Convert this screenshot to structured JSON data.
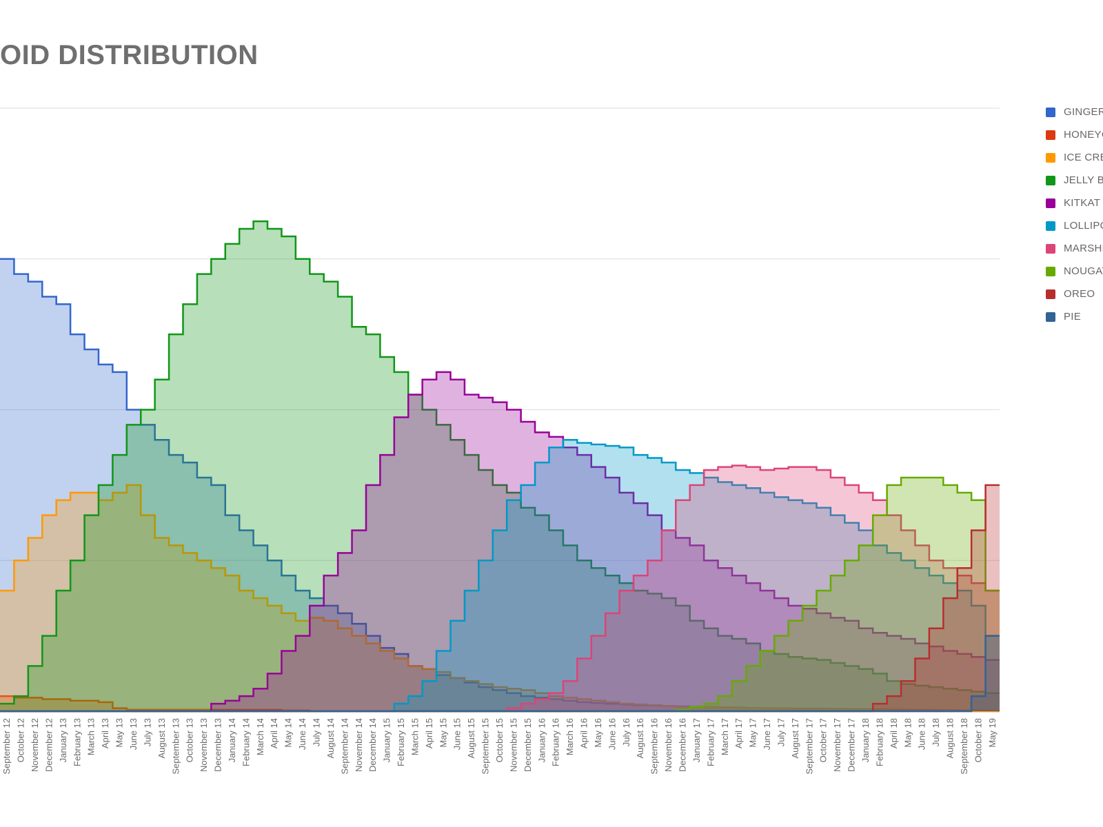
{
  "title": "OID DISTRIBUTION",
  "chart_data": {
    "type": "area",
    "x_labels": [
      "September 12",
      "October 12",
      "November 12",
      "December 12",
      "January 13",
      "February 13",
      "March 13",
      "April 13",
      "May 13",
      "June 13",
      "July 13",
      "August 13",
      "September 13",
      "October 13",
      "November 13",
      "December 13",
      "January 14",
      "February 14",
      "March 14",
      "April 14",
      "May 14",
      "June 14",
      "July 14",
      "August 14",
      "September 14",
      "November 14",
      "December 14",
      "January 15",
      "February 15",
      "March 15",
      "April 15",
      "May 15",
      "June 15",
      "August 15",
      "September 15",
      "October 15",
      "November 15",
      "December 15",
      "January 16",
      "February 16",
      "March 16",
      "April 16",
      "May 16",
      "June 16",
      "July 16",
      "August 16",
      "September 16",
      "November 16",
      "December 16",
      "January 17",
      "February 17",
      "March 17",
      "April 17",
      "May 17",
      "June 17",
      "July 17",
      "August 17",
      "September 17",
      "October 17",
      "November 17",
      "December 17",
      "January 18",
      "February 18",
      "April 18",
      "May 18",
      "June 18",
      "July 18",
      "August 18",
      "September 18",
      "October 18",
      "May 19"
    ],
    "y_gridlines": 4,
    "ylim": [
      0,
      4
    ],
    "series": [
      {
        "name": "GINGERBREAD",
        "color": "#3366cc",
        "values": [
          3.0,
          2.9,
          2.85,
          2.75,
          2.7,
          2.5,
          2.4,
          2.3,
          2.25,
          2.0,
          1.9,
          1.8,
          1.7,
          1.65,
          1.55,
          1.5,
          1.3,
          1.2,
          1.1,
          1.0,
          0.9,
          0.8,
          0.75,
          0.7,
          0.65,
          0.58,
          0.5,
          0.42,
          0.38,
          0.3,
          0.28,
          0.24,
          0.22,
          0.19,
          0.16,
          0.14,
          0.12,
          0.1,
          0.09,
          0.08,
          0.07,
          0.06,
          0.055,
          0.05,
          0.045,
          0.04,
          0.038,
          0.035,
          0.032,
          0.03,
          0.028,
          0.026,
          0.024,
          0.022,
          0.02,
          0.019,
          0.018,
          0.017,
          0.016,
          0.015,
          0.014,
          0.013,
          0.012,
          0.011,
          0.01,
          0.009,
          0.008,
          0.007,
          0.006,
          0.005,
          0.004
        ]
      },
      {
        "name": "HONEYCOMB",
        "color": "#dc3912",
        "values": [
          0.1,
          0.09,
          0.09,
          0.08,
          0.08,
          0.07,
          0.07,
          0.06,
          0.02,
          0.01,
          0.01,
          0.01,
          0.01,
          0.01,
          0.01,
          0.01,
          0.01,
          0.01,
          0.01,
          0.01,
          0.005,
          0.005,
          0,
          0,
          0,
          0,
          0,
          0,
          0,
          0,
          0,
          0,
          0,
          0,
          0,
          0,
          0,
          0,
          0,
          0,
          0,
          0,
          0,
          0,
          0,
          0,
          0,
          0,
          0,
          0,
          0,
          0,
          0,
          0,
          0,
          0,
          0,
          0,
          0,
          0,
          0,
          0,
          0,
          0,
          0,
          0,
          0,
          0,
          0,
          0,
          0
        ]
      },
      {
        "name": "ICE CREAM SANDWICH",
        "color": "#ff9900",
        "values": [
          0.8,
          1.0,
          1.15,
          1.3,
          1.4,
          1.45,
          1.45,
          1.4,
          1.45,
          1.5,
          1.3,
          1.15,
          1.1,
          1.05,
          1.0,
          0.95,
          0.9,
          0.8,
          0.75,
          0.7,
          0.65,
          0.6,
          0.62,
          0.6,
          0.55,
          0.5,
          0.45,
          0.4,
          0.35,
          0.3,
          0.28,
          0.26,
          0.22,
          0.2,
          0.18,
          0.16,
          0.15,
          0.14,
          0.12,
          0.1,
          0.09,
          0.08,
          0.07,
          0.06,
          0.05,
          0.045,
          0.04,
          0.035,
          0.03,
          0.028,
          0.026,
          0.024,
          0.022,
          0.02,
          0.018,
          0.016,
          0.015,
          0.014,
          0.012,
          0.011,
          0.01,
          0.009,
          0.008,
          0.007,
          0.006,
          0.005,
          0.004,
          0.003,
          0.002,
          0.001,
          0.001
        ]
      },
      {
        "name": "JELLY BEAN",
        "color": "#109618",
        "values": [
          0.05,
          0.1,
          0.3,
          0.5,
          0.8,
          1.0,
          1.3,
          1.5,
          1.7,
          1.9,
          2.0,
          2.2,
          2.5,
          2.7,
          2.9,
          3.0,
          3.1,
          3.2,
          3.25,
          3.2,
          3.15,
          3.0,
          2.9,
          2.85,
          2.75,
          2.55,
          2.5,
          2.35,
          2.25,
          2.1,
          2.0,
          1.9,
          1.8,
          1.7,
          1.6,
          1.5,
          1.45,
          1.35,
          1.3,
          1.2,
          1.1,
          1.0,
          0.95,
          0.9,
          0.85,
          0.8,
          0.78,
          0.75,
          0.7,
          0.6,
          0.55,
          0.5,
          0.48,
          0.45,
          0.4,
          0.38,
          0.36,
          0.35,
          0.34,
          0.32,
          0.3,
          0.28,
          0.25,
          0.2,
          0.18,
          0.17,
          0.16,
          0.15,
          0.14,
          0.13,
          0.12
        ]
      },
      {
        "name": "KITKAT",
        "color": "#990099",
        "values": [
          0,
          0,
          0,
          0,
          0,
          0,
          0,
          0,
          0,
          0,
          0,
          0,
          0,
          0,
          0,
          0.05,
          0.07,
          0.1,
          0.15,
          0.25,
          0.4,
          0.5,
          0.7,
          0.9,
          1.05,
          1.2,
          1.5,
          1.7,
          1.95,
          2.1,
          2.2,
          2.25,
          2.2,
          2.1,
          2.08,
          2.05,
          2.0,
          1.92,
          1.85,
          1.82,
          1.75,
          1.7,
          1.62,
          1.55,
          1.45,
          1.38,
          1.3,
          1.2,
          1.15,
          1.1,
          1.0,
          0.95,
          0.9,
          0.85,
          0.8,
          0.75,
          0.7,
          0.68,
          0.65,
          0.62,
          0.6,
          0.55,
          0.52,
          0.5,
          0.48,
          0.45,
          0.43,
          0.4,
          0.38,
          0.36,
          0.34
        ]
      },
      {
        "name": "LOLLIPOP",
        "color": "#0099c6",
        "values": [
          0,
          0,
          0,
          0,
          0,
          0,
          0,
          0,
          0,
          0,
          0,
          0,
          0,
          0,
          0,
          0,
          0,
          0,
          0,
          0,
          0,
          0,
          0,
          0,
          0,
          0,
          0,
          0,
          0.05,
          0.1,
          0.2,
          0.4,
          0.6,
          0.8,
          1.0,
          1.2,
          1.4,
          1.5,
          1.65,
          1.75,
          1.8,
          1.78,
          1.77,
          1.76,
          1.75,
          1.7,
          1.68,
          1.65,
          1.6,
          1.58,
          1.55,
          1.52,
          1.5,
          1.48,
          1.45,
          1.42,
          1.4,
          1.38,
          1.35,
          1.3,
          1.25,
          1.2,
          1.1,
          1.05,
          1.0,
          0.95,
          0.9,
          0.85,
          0.8,
          0.7,
          0.5
        ]
      },
      {
        "name": "MARSHMALLOW",
        "color": "#dd4477",
        "values": [
          0,
          0,
          0,
          0,
          0,
          0,
          0,
          0,
          0,
          0,
          0,
          0,
          0,
          0,
          0,
          0,
          0,
          0,
          0,
          0,
          0,
          0,
          0,
          0,
          0,
          0,
          0,
          0,
          0,
          0,
          0,
          0,
          0,
          0,
          0,
          0,
          0.02,
          0.05,
          0.08,
          0.12,
          0.2,
          0.35,
          0.5,
          0.65,
          0.8,
          0.9,
          1.0,
          1.2,
          1.4,
          1.5,
          1.6,
          1.62,
          1.63,
          1.62,
          1.6,
          1.61,
          1.62,
          1.62,
          1.6,
          1.55,
          1.5,
          1.45,
          1.4,
          1.3,
          1.2,
          1.1,
          1.0,
          0.95,
          0.9,
          0.85,
          0.8
        ]
      },
      {
        "name": "NOUGAT",
        "color": "#66aa00",
        "values": [
          0,
          0,
          0,
          0,
          0,
          0,
          0,
          0,
          0,
          0,
          0,
          0,
          0,
          0,
          0,
          0,
          0,
          0,
          0,
          0,
          0,
          0,
          0,
          0,
          0,
          0,
          0,
          0,
          0,
          0,
          0,
          0,
          0,
          0,
          0,
          0,
          0,
          0,
          0,
          0,
          0,
          0,
          0,
          0,
          0,
          0,
          0,
          0,
          0.01,
          0.03,
          0.05,
          0.1,
          0.2,
          0.3,
          0.4,
          0.5,
          0.6,
          0.7,
          0.8,
          0.9,
          1.0,
          1.1,
          1.3,
          1.5,
          1.55,
          1.55,
          1.55,
          1.5,
          1.45,
          1.4,
          0.8
        ]
      },
      {
        "name": "OREO",
        "color": "#b82e2e",
        "values": [
          0,
          0,
          0,
          0,
          0,
          0,
          0,
          0,
          0,
          0,
          0,
          0,
          0,
          0,
          0,
          0,
          0,
          0,
          0,
          0,
          0,
          0,
          0,
          0,
          0,
          0,
          0,
          0,
          0,
          0,
          0,
          0,
          0,
          0,
          0,
          0,
          0,
          0,
          0,
          0,
          0,
          0,
          0,
          0,
          0,
          0,
          0,
          0,
          0,
          0,
          0,
          0,
          0,
          0,
          0,
          0,
          0,
          0,
          0,
          0,
          0,
          0,
          0.05,
          0.1,
          0.2,
          0.35,
          0.55,
          0.75,
          0.95,
          1.2,
          1.5
        ]
      },
      {
        "name": "PIE",
        "color": "#316395",
        "values": [
          0,
          0,
          0,
          0,
          0,
          0,
          0,
          0,
          0,
          0,
          0,
          0,
          0,
          0,
          0,
          0,
          0,
          0,
          0,
          0,
          0,
          0,
          0,
          0,
          0,
          0,
          0,
          0,
          0,
          0,
          0,
          0,
          0,
          0,
          0,
          0,
          0,
          0,
          0,
          0,
          0,
          0,
          0,
          0,
          0,
          0,
          0,
          0,
          0,
          0,
          0,
          0,
          0,
          0,
          0,
          0,
          0,
          0,
          0,
          0,
          0,
          0,
          0,
          0,
          0,
          0,
          0,
          0,
          0,
          0.1,
          0.5
        ]
      }
    ]
  }
}
